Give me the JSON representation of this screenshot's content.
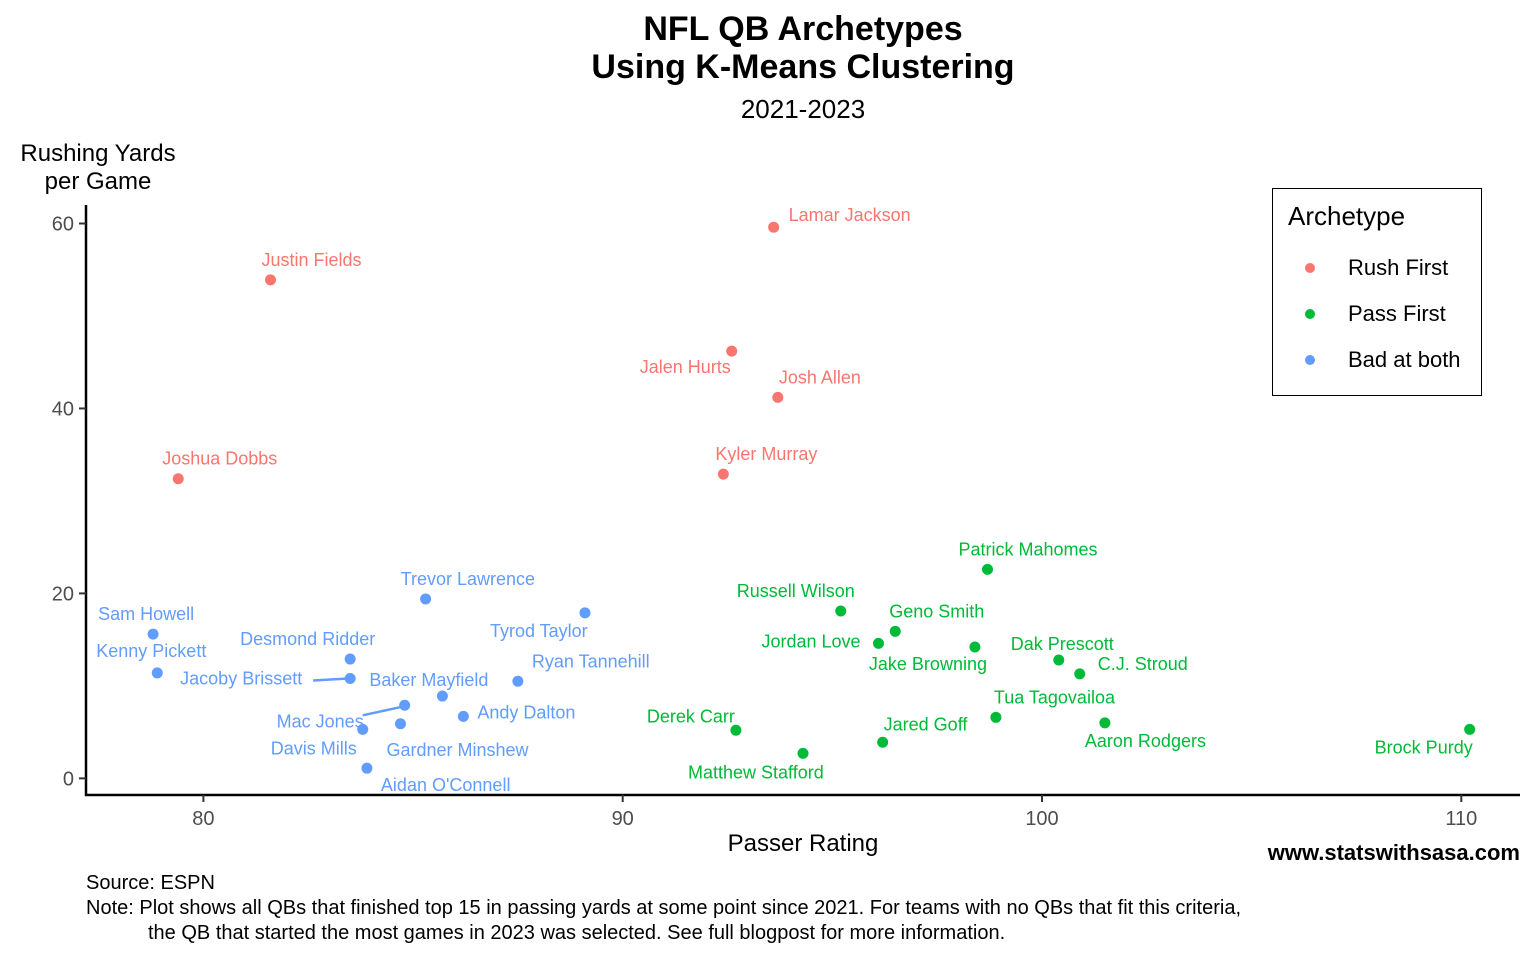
{
  "chart_data": {
    "type": "scatter",
    "title": "NFL QB Archetypes",
    "title_line2": "Using K-Means Clustering",
    "subtitle": "2021-2023",
    "xlabel": "Passer Rating",
    "ylabel_line1": "Rushing Yards",
    "ylabel_line2": "per Game",
    "xlim": [
      77.2,
      111.4
    ],
    "ylim": [
      -1.8,
      62
    ],
    "xticks": [
      80,
      90,
      100,
      110
    ],
    "yticks": [
      0,
      20,
      40,
      60
    ],
    "legend_title": "Archetype",
    "legend_position": "top-right",
    "series": [
      {
        "name": "Rush First",
        "color": "#F8766D",
        "points": [
          {
            "label": "Lamar Jackson",
            "x": 93.6,
            "y": 59.6
          },
          {
            "label": "Justin Fields",
            "x": 81.6,
            "y": 53.9
          },
          {
            "label": "Jalen Hurts",
            "x": 92.6,
            "y": 46.2
          },
          {
            "label": "Josh Allen",
            "x": 93.7,
            "y": 41.2
          },
          {
            "label": "Kyler Murray",
            "x": 92.4,
            "y": 32.9
          },
          {
            "label": "Joshua Dobbs",
            "x": 79.4,
            "y": 32.4
          }
        ]
      },
      {
        "name": "Pass First",
        "color": "#00BA38",
        "points": [
          {
            "label": "Patrick Mahomes",
            "x": 98.7,
            "y": 22.6
          },
          {
            "label": "Russell Wilson",
            "x": 95.2,
            "y": 18.1
          },
          {
            "label": "Geno Smith",
            "x": 96.5,
            "y": 15.9
          },
          {
            "label": "Jordan Love",
            "x": 96.1,
            "y": 14.6
          },
          {
            "label": "Jake Browning",
            "x": 98.4,
            "y": 14.2
          },
          {
            "label": "Dak Prescott",
            "x": 100.4,
            "y": 12.8
          },
          {
            "label": "C.J. Stroud",
            "x": 100.9,
            "y": 11.3
          },
          {
            "label": "Tua Tagovailoa",
            "x": 98.9,
            "y": 6.6
          },
          {
            "label": "Aaron Rodgers",
            "x": 101.5,
            "y": 6.0
          },
          {
            "label": "Derek Carr",
            "x": 92.7,
            "y": 5.2
          },
          {
            "label": "Brock Purdy",
            "x": 110.2,
            "y": 5.3
          },
          {
            "label": "Jared Goff",
            "x": 96.2,
            "y": 3.9
          },
          {
            "label": "Matthew Stafford",
            "x": 94.3,
            "y": 2.7
          }
        ]
      },
      {
        "name": "Bad at both",
        "color": "#619CFF",
        "points": [
          {
            "label": "Trevor Lawrence",
            "x": 85.3,
            "y": 19.4
          },
          {
            "label": "Tyrod Taylor",
            "x": 89.1,
            "y": 17.9
          },
          {
            "label": "Sam Howell",
            "x": 78.8,
            "y": 15.6
          },
          {
            "label": "Desmond Ridder",
            "x": 83.5,
            "y": 12.9
          },
          {
            "label": "Kenny Pickett",
            "x": 78.9,
            "y": 11.4
          },
          {
            "label": "Jacoby Brissett",
            "x": 83.5,
            "y": 10.8
          },
          {
            "label": "Ryan Tannehill",
            "x": 87.5,
            "y": 10.5
          },
          {
            "label": "Baker Mayfield",
            "x": 85.7,
            "y": 8.9
          },
          {
            "label": "Mac Jones",
            "x": 84.8,
            "y": 7.9
          },
          {
            "label": "Andy Dalton",
            "x": 86.2,
            "y": 6.7
          },
          {
            "label": "Gardner Minshew",
            "x": 84.7,
            "y": 5.9
          },
          {
            "label": "Davis Mills",
            "x": 83.8,
            "y": 5.3
          },
          {
            "label": "Aidan O'Connell",
            "x": 83.9,
            "y": 1.1
          }
        ]
      }
    ]
  },
  "footer": {
    "source": "Source: ESPN",
    "note_line1": "Note: Plot shows all QBs that finished top 15 in passing yards at some point since 2021. For teams with no QBs that fit this criteria,",
    "note_line2": "the QB that started the most games in 2023 was selected. See full blogpost for more information.",
    "website": "www.statswithsasa.com"
  }
}
